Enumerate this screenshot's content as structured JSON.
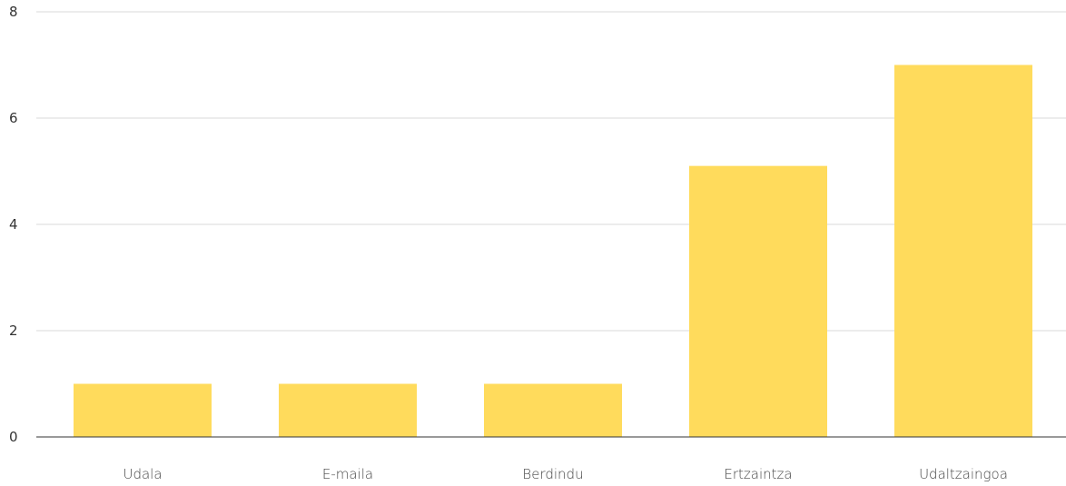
{
  "chart_data": {
    "type": "bar",
    "categories": [
      "Udala",
      "E-maila",
      "Berdindu",
      "Ertzaintza",
      "Udaltzaingoa"
    ],
    "values": [
      1,
      1,
      1,
      5.1,
      7
    ],
    "yticks": [
      "0",
      "2",
      "4",
      "6",
      "8"
    ],
    "ylim": [
      0,
      8
    ],
    "grid": true,
    "bar_color": "#FFDB5C",
    "grid_color": "#D9D9D9",
    "axis_color": "#333333"
  }
}
